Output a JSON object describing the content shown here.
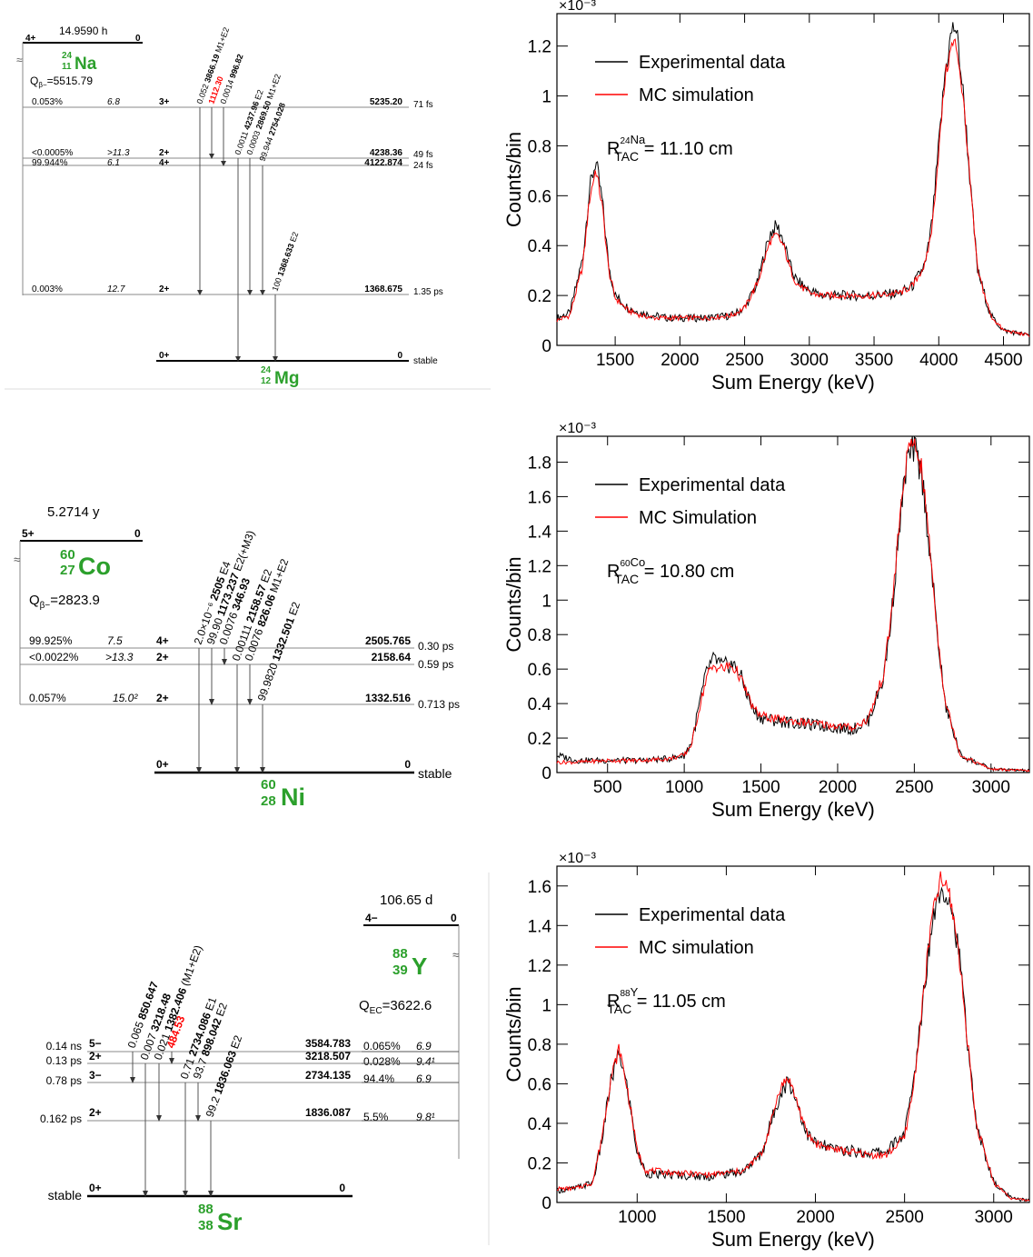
{
  "decay_schemes": [
    {
      "id": "na24",
      "parent": {
        "half_life": "14.9590 h",
        "spin": "4+",
        "energy": "0",
        "mass": "24",
        "z": "11",
        "symbol": "Na",
        "q_label": "Q",
        "q_sub": "β−",
        "q_value": "=5515.79"
      },
      "daughter": {
        "mass": "24",
        "z": "12",
        "symbol": "Mg",
        "spin": "0+",
        "energy": "0",
        "lifetime": "stable"
      },
      "levels": [
        {
          "branch": "0.053%",
          "logft": "6.8",
          "spin": "3+",
          "energy": "5235.20",
          "lifetime": "71 fs"
        },
        {
          "branch": "<0.0005%",
          "logft": ">11.3",
          "spin": "2+",
          "energy": "4238.36",
          "lifetime": "49 fs"
        },
        {
          "branch": "99.944%",
          "logft": "6.1",
          "spin": "4+",
          "energy": "4122.874",
          "lifetime": "24 fs"
        },
        {
          "branch": "0.003%",
          "logft": "12.7",
          "spin": "2+",
          "energy": "1368.675",
          "lifetime": "1.35 ps"
        }
      ],
      "gammas": [
        {
          "intensity": "0.052",
          "energy": "3866.19",
          "mult": "M1+E2",
          "highlight": false
        },
        {
          "intensity": "",
          "energy": "1112.30",
          "mult": "",
          "highlight": true
        },
        {
          "intensity": "0.0014",
          "energy": "996.82",
          "mult": "",
          "highlight": false
        },
        {
          "intensity": "0.0011",
          "energy": "4237.96",
          "mult": "E2",
          "highlight": false
        },
        {
          "intensity": "0.0003",
          "energy": "2869.50",
          "mult": "M1+E2",
          "highlight": false
        },
        {
          "intensity": "99.944",
          "energy": "2754.028",
          "mult": "",
          "highlight": false
        },
        {
          "intensity": "100",
          "energy": "1368.633",
          "mult": "E2",
          "highlight": false
        }
      ]
    },
    {
      "id": "co60",
      "parent": {
        "half_life": "5.2714 y",
        "spin": "5+",
        "energy": "0",
        "mass": "60",
        "z": "27",
        "symbol": "Co",
        "q_label": "Q",
        "q_sub": "β−",
        "q_value": "=2823.9"
      },
      "daughter": {
        "mass": "60",
        "z": "28",
        "symbol": "Ni",
        "spin": "0+",
        "energy": "0",
        "lifetime": "stable"
      },
      "levels": [
        {
          "branch": "99.925%",
          "logft": "7.5",
          "spin": "4+",
          "energy": "2505.765",
          "lifetime": "0.30 ps"
        },
        {
          "branch": "<0.0022%",
          "logft": ">13.3",
          "spin": "2+",
          "energy": "2158.64",
          "lifetime": "0.59 ps"
        },
        {
          "branch": "0.057%",
          "logft": "15.0²",
          "spin": "2+",
          "energy": "1332.516",
          "lifetime": "0.713 ps"
        }
      ],
      "gammas": [
        {
          "intensity": "2.0×10⁻⁶",
          "energy": "2505",
          "mult": "E4",
          "highlight": false
        },
        {
          "intensity": "99.90",
          "energy": "1173.237",
          "mult": "E2(+M3)",
          "highlight": false
        },
        {
          "intensity": "0.0076",
          "energy": "346.93",
          "mult": "",
          "highlight": false
        },
        {
          "intensity": "0.00111",
          "energy": "2158.57",
          "mult": "E2",
          "highlight": false
        },
        {
          "intensity": "0.0076",
          "energy": "826.06",
          "mult": "M1+E2",
          "highlight": false
        },
        {
          "intensity": "99.9820",
          "energy": "1332.501",
          "mult": "E2",
          "highlight": false
        }
      ]
    },
    {
      "id": "y88",
      "parent": {
        "half_life": "106.65 d",
        "spin": "4−",
        "energy": "0",
        "mass": "88",
        "z": "39",
        "symbol": "Y",
        "q_label": "Q",
        "q_sub": "EC",
        "q_value": "=3622.6"
      },
      "daughter": {
        "mass": "88",
        "z": "38",
        "symbol": "Sr",
        "spin": "0+",
        "energy": "0",
        "lifetime": "stable"
      },
      "levels": [
        {
          "branch": "0.065%",
          "logft": "6.9",
          "spin": "5−",
          "energy": "3584.783",
          "lifetime": "0.14 ns"
        },
        {
          "branch": "0.028%",
          "logft": "9.4¹",
          "spin": "2+",
          "energy": "3218.507",
          "lifetime": "0.13 ps"
        },
        {
          "branch": "94.4%",
          "logft": "6.9",
          "spin": "3−",
          "energy": "2734.135",
          "lifetime": "0.78  ps"
        },
        {
          "branch": "5.5%",
          "logft": "9.8¹",
          "spin": "2+",
          "energy": "1836.087",
          "lifetime": "0.162 ps"
        }
      ],
      "gammas": [
        {
          "intensity": "0.065",
          "energy": "850.647",
          "mult": "",
          "highlight": false
        },
        {
          "intensity": "0.007",
          "energy": "3218.48",
          "mult": "",
          "highlight": false
        },
        {
          "intensity": "0.021",
          "energy": "1382.406",
          "mult": "(M1+E2)",
          "highlight": false
        },
        {
          "intensity": "",
          "energy": "484.53",
          "mult": "",
          "highlight": true
        },
        {
          "intensity": "0.71",
          "energy": "2734.086",
          "mult": "E1",
          "highlight": false
        },
        {
          "intensity": "93.7",
          "energy": "898.042",
          "mult": "E2",
          "highlight": false
        },
        {
          "intensity": "99.2",
          "energy": "1836.063",
          "mult": "E2",
          "highlight": false
        }
      ]
    }
  ],
  "colors": {
    "experimental": "#000000",
    "simulation": "#ff0000",
    "nuclide": "#2ca02c",
    "highlight": "#ff0000"
  },
  "chart_data": [
    {
      "type": "line",
      "xlabel": "Sum Energy (keV)",
      "ylabel": "Counts/bin",
      "y_multiplier": "×10⁻³",
      "xlim": [
        1050,
        4700
      ],
      "ylim": [
        0,
        1.33
      ],
      "xticks": [
        1500,
        2000,
        2500,
        3000,
        3500,
        4000,
        4500
      ],
      "yticks": [
        0,
        0.2,
        0.4,
        0.6,
        0.8,
        1,
        1.2
      ],
      "xtick_labels": [
        "1500",
        "2000",
        "2500",
        "3000",
        "3500",
        "4000",
        "4500"
      ],
      "ytick_labels": [
        "0",
        "0.2",
        "0.4",
        "0.6",
        "0.8",
        "1",
        "1.2"
      ],
      "legend": {
        "position": "top-left",
        "entries": [
          "Experimental data",
          "MC simulation"
        ]
      },
      "annotation": {
        "prefix": "R",
        "sup": "24",
        "sup2": "Na",
        "sub": "TAC",
        "text": " = 11.10 cm"
      },
      "series": [
        {
          "name": "Experimental data",
          "x": [
            1050,
            1150,
            1250,
            1300,
            1350,
            1400,
            1450,
            1500,
            1600,
            1700,
            1800,
            1900,
            2000,
            2200,
            2400,
            2500,
            2600,
            2650,
            2700,
            2750,
            2800,
            2850,
            2900,
            3000,
            3100,
            3300,
            3500,
            3700,
            3800,
            3900,
            3950,
            4000,
            4050,
            4100,
            4130,
            4150,
            4200,
            4250,
            4300,
            4400,
            4500,
            4600,
            4700
          ],
          "y": [
            0.11,
            0.13,
            0.35,
            0.62,
            0.74,
            0.58,
            0.32,
            0.2,
            0.15,
            0.13,
            0.12,
            0.11,
            0.11,
            0.11,
            0.12,
            0.15,
            0.25,
            0.36,
            0.45,
            0.48,
            0.42,
            0.32,
            0.26,
            0.22,
            0.2,
            0.2,
            0.2,
            0.21,
            0.24,
            0.33,
            0.5,
            0.8,
            1.1,
            1.26,
            1.28,
            1.2,
            0.95,
            0.6,
            0.3,
            0.12,
            0.06,
            0.05,
            0.04
          ]
        },
        {
          "name": "MC simulation",
          "x": [
            1050,
            1150,
            1250,
            1300,
            1350,
            1400,
            1450,
            1500,
            1600,
            1700,
            1800,
            1900,
            2000,
            2200,
            2400,
            2500,
            2600,
            2650,
            2700,
            2750,
            2800,
            2850,
            2900,
            3000,
            3100,
            3300,
            3500,
            3700,
            3800,
            3900,
            3950,
            4000,
            4050,
            4100,
            4130,
            4150,
            4200,
            4250,
            4300,
            4400,
            4500,
            4600,
            4700
          ],
          "y": [
            0.1,
            0.12,
            0.32,
            0.58,
            0.71,
            0.56,
            0.3,
            0.19,
            0.14,
            0.12,
            0.11,
            0.11,
            0.11,
            0.11,
            0.12,
            0.15,
            0.25,
            0.34,
            0.42,
            0.44,
            0.4,
            0.31,
            0.25,
            0.21,
            0.2,
            0.2,
            0.2,
            0.21,
            0.24,
            0.33,
            0.48,
            0.78,
            1.08,
            1.2,
            1.21,
            1.16,
            0.93,
            0.6,
            0.3,
            0.12,
            0.06,
            0.05,
            0.04
          ]
        }
      ]
    },
    {
      "type": "line",
      "xlabel": "Sum Energy (keV)",
      "ylabel": "Counts/bin",
      "y_multiplier": "×10⁻³",
      "xlim": [
        170,
        3250
      ],
      "ylim": [
        0,
        1.95
      ],
      "xticks": [
        500,
        1000,
        1500,
        2000,
        2500,
        3000
      ],
      "yticks": [
        0,
        0.2,
        0.4,
        0.6,
        0.8,
        1,
        1.2,
        1.4,
        1.6,
        1.8
      ],
      "xtick_labels": [
        "500",
        "1000",
        "1500",
        "2000",
        "2500",
        "3000"
      ],
      "ytick_labels": [
        "0",
        "0.2",
        "0.4",
        "0.6",
        "0.8",
        "1",
        "1.2",
        "1.4",
        "1.6",
        "1.8"
      ],
      "legend": {
        "position": "top-left",
        "entries": [
          "Experimental data",
          "MC Simulation"
        ]
      },
      "annotation": {
        "prefix": "R",
        "sup": "60",
        "sup2": "Co",
        "sub": "TAC",
        "text": " = 10.80 cm"
      },
      "series": [
        {
          "name": "Experimental data",
          "x": [
            170,
            300,
            500,
            700,
            900,
            1000,
            1050,
            1100,
            1150,
            1200,
            1250,
            1300,
            1350,
            1400,
            1450,
            1500,
            1600,
            1800,
            2000,
            2100,
            2200,
            2300,
            2350,
            2400,
            2450,
            2500,
            2550,
            2600,
            2650,
            2700,
            2800,
            3000,
            3250
          ],
          "y": [
            0.1,
            0.07,
            0.07,
            0.07,
            0.08,
            0.1,
            0.18,
            0.4,
            0.6,
            0.66,
            0.61,
            0.63,
            0.6,
            0.48,
            0.36,
            0.32,
            0.3,
            0.28,
            0.26,
            0.25,
            0.3,
            0.55,
            0.9,
            1.4,
            1.8,
            1.88,
            1.72,
            1.3,
            0.8,
            0.4,
            0.1,
            0.02,
            0.01
          ]
        },
        {
          "name": "MC Simulation",
          "x": [
            170,
            300,
            500,
            700,
            900,
            1000,
            1050,
            1100,
            1150,
            1200,
            1250,
            1300,
            1350,
            1400,
            1450,
            1500,
            1600,
            1800,
            2000,
            2100,
            2200,
            2300,
            2350,
            2400,
            2450,
            2500,
            2550,
            2600,
            2650,
            2700,
            2800,
            3000,
            3250
          ],
          "y": [
            0.06,
            0.06,
            0.07,
            0.07,
            0.08,
            0.1,
            0.17,
            0.38,
            0.57,
            0.62,
            0.6,
            0.62,
            0.58,
            0.48,
            0.37,
            0.33,
            0.31,
            0.29,
            0.27,
            0.26,
            0.31,
            0.57,
            0.92,
            1.42,
            1.83,
            1.92,
            1.75,
            1.32,
            0.82,
            0.42,
            0.1,
            0.02,
            0.01
          ]
        }
      ]
    },
    {
      "type": "line",
      "xlabel": "Sum Energy (keV)",
      "ylabel": "Counts/bin",
      "y_multiplier": "×10⁻³",
      "xlim": [
        550,
        3200
      ],
      "ylim": [
        0,
        1.7
      ],
      "xticks": [
        1000,
        1500,
        2000,
        2500,
        3000
      ],
      "yticks": [
        0,
        0.2,
        0.4,
        0.6,
        0.8,
        1,
        1.2,
        1.4,
        1.6
      ],
      "xtick_labels": [
        "1000",
        "1500",
        "2000",
        "2500",
        "3000"
      ],
      "ytick_labels": [
        "0",
        "0.2",
        "0.4",
        "0.6",
        "0.8",
        "1",
        "1.2",
        "1.4",
        "1.6"
      ],
      "legend": {
        "position": "top-left",
        "entries": [
          "Experimental data",
          "MC simulation"
        ]
      },
      "annotation": {
        "prefix": "R",
        "sup": "88",
        "sup2": "Y",
        "sub": "TAC",
        "text": " = 11.05 cm"
      },
      "series": [
        {
          "name": "Experimental data",
          "x": [
            550,
            650,
            750,
            800,
            850,
            900,
            950,
            1000,
            1050,
            1100,
            1200,
            1400,
            1600,
            1700,
            1750,
            1800,
            1850,
            1900,
            1950,
            2000,
            2100,
            2300,
            2400,
            2500,
            2550,
            2600,
            2650,
            2700,
            2750,
            2800,
            2850,
            2900,
            3000,
            3100,
            3200
          ],
          "y": [
            0.06,
            0.07,
            0.1,
            0.3,
            0.6,
            0.76,
            0.55,
            0.25,
            0.15,
            0.14,
            0.14,
            0.13,
            0.16,
            0.25,
            0.4,
            0.55,
            0.62,
            0.5,
            0.35,
            0.3,
            0.27,
            0.25,
            0.26,
            0.35,
            0.6,
            1.0,
            1.4,
            1.6,
            1.55,
            1.3,
            0.85,
            0.4,
            0.1,
            0.02,
            0.01
          ]
        },
        {
          "name": "MC simulation",
          "x": [
            550,
            650,
            750,
            800,
            850,
            900,
            950,
            1000,
            1050,
            1100,
            1200,
            1400,
            1600,
            1700,
            1750,
            1800,
            1850,
            1900,
            1950,
            2000,
            2100,
            2300,
            2400,
            2500,
            2550,
            2600,
            2650,
            2700,
            2750,
            2800,
            2850,
            2900,
            3000,
            3100,
            3200
          ],
          "y": [
            0.07,
            0.07,
            0.1,
            0.32,
            0.62,
            0.78,
            0.55,
            0.26,
            0.16,
            0.16,
            0.15,
            0.14,
            0.16,
            0.25,
            0.4,
            0.58,
            0.63,
            0.5,
            0.35,
            0.3,
            0.27,
            0.24,
            0.24,
            0.33,
            0.58,
            1.0,
            1.42,
            1.63,
            1.57,
            1.3,
            0.85,
            0.4,
            0.1,
            0.02,
            0.01
          ]
        }
      ]
    }
  ]
}
